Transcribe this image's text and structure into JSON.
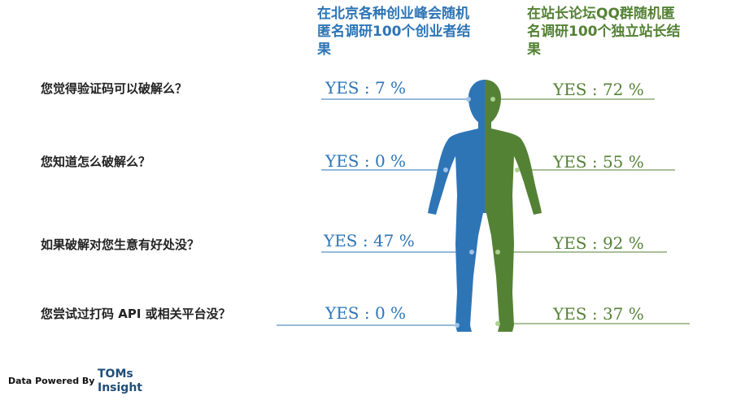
{
  "colors": {
    "left": "#2e75b6",
    "right": "#548235",
    "text": "#222222",
    "brand": "#1f4e79"
  },
  "chart_data": {
    "type": "table",
    "series": [
      {
        "name": "在北京各种创业峰会随机匿名调研100个创业者结果",
        "color": "#2e75b6",
        "values": [
          7,
          0,
          47,
          0
        ]
      },
      {
        "name": "在站长论坛QQ群随机匿名调研100个独立站长结果",
        "color": "#548235",
        "values": [
          72,
          55,
          92,
          37
        ]
      }
    ],
    "categories": [
      "您觉得验证码可以破解么？",
      "您知道怎么破解么？",
      "如果破解对您生意有好处没？",
      "您尝试过打码 API 或相关平台没？"
    ],
    "labels_left": [
      "YES : 7 %",
      "YES : 0 %",
      "YES : 47 %",
      "YES : 0 %"
    ],
    "labels_right": [
      "YES : 72 %",
      "YES : 55 %",
      "YES : 92 %",
      "YES : 37 %"
    ]
  },
  "footer": {
    "label": "Data Powered By",
    "brand": "TOMs Insight"
  }
}
